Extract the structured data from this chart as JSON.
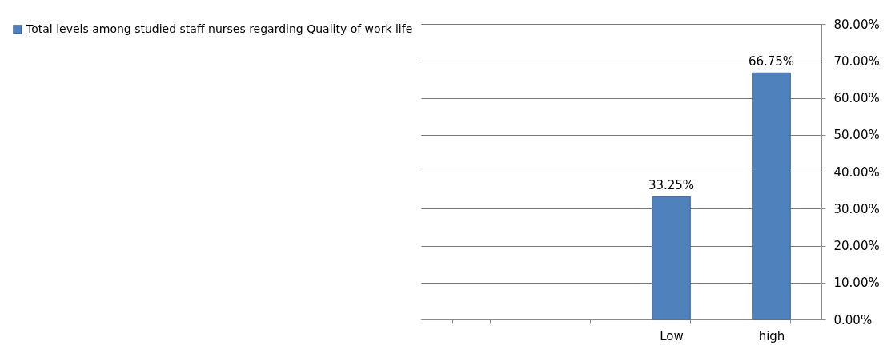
{
  "chart_data": {
    "type": "bar",
    "categories": [
      null,
      null,
      "Low",
      "high"
    ],
    "series": [
      {
        "name": "Total levels among studied staff nurses regarding Quality of work life",
        "color": "#4f81bd",
        "values": [
          null,
          null,
          33.25,
          66.75
        ],
        "value_labels": [
          null,
          null,
          "33.25%",
          "66.75%"
        ]
      }
    ],
    "ylim": [
      0,
      80
    ],
    "yticks": [
      {
        "value": 0,
        "label": "0.00%"
      },
      {
        "value": 10,
        "label": "10.00%"
      },
      {
        "value": 20,
        "label": "20.00%"
      },
      {
        "value": 30,
        "label": "30.00%"
      },
      {
        "value": 40,
        "label": "40.00%"
      },
      {
        "value": 50,
        "label": "50.00%"
      },
      {
        "value": 60,
        "label": "60.00%"
      },
      {
        "value": 70,
        "label": "70.00%"
      },
      {
        "value": 80,
        "label": "80.00%"
      }
    ],
    "grid": "y",
    "legend": "left"
  }
}
